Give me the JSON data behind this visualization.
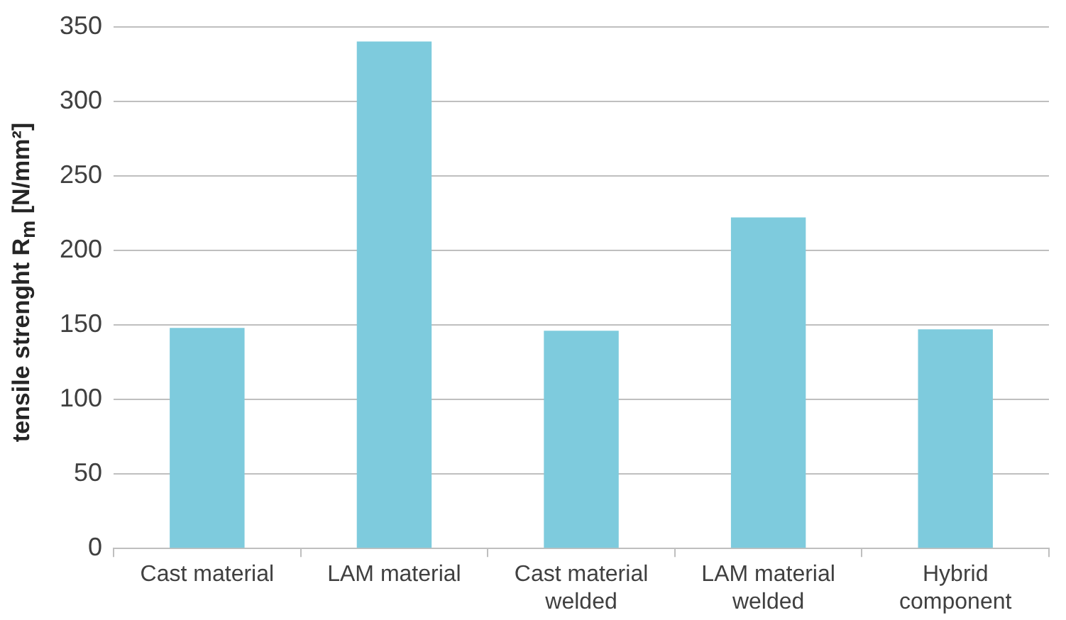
{
  "chart_data": {
    "type": "bar",
    "ylabel": "tensile strenght R$_{m}$ [N/mm²]",
    "categories": [
      "Cast material",
      "LAM material",
      "Cast material welded",
      "LAM material welded",
      "Hybrid component"
    ],
    "values": [
      148,
      340,
      146,
      222,
      147
    ],
    "color": "#7ecbdd",
    "ylim": [
      0,
      350
    ],
    "yticks": [
      0,
      50,
      100,
      150,
      200,
      250,
      300,
      350
    ],
    "grid": "y",
    "legend": false
  }
}
